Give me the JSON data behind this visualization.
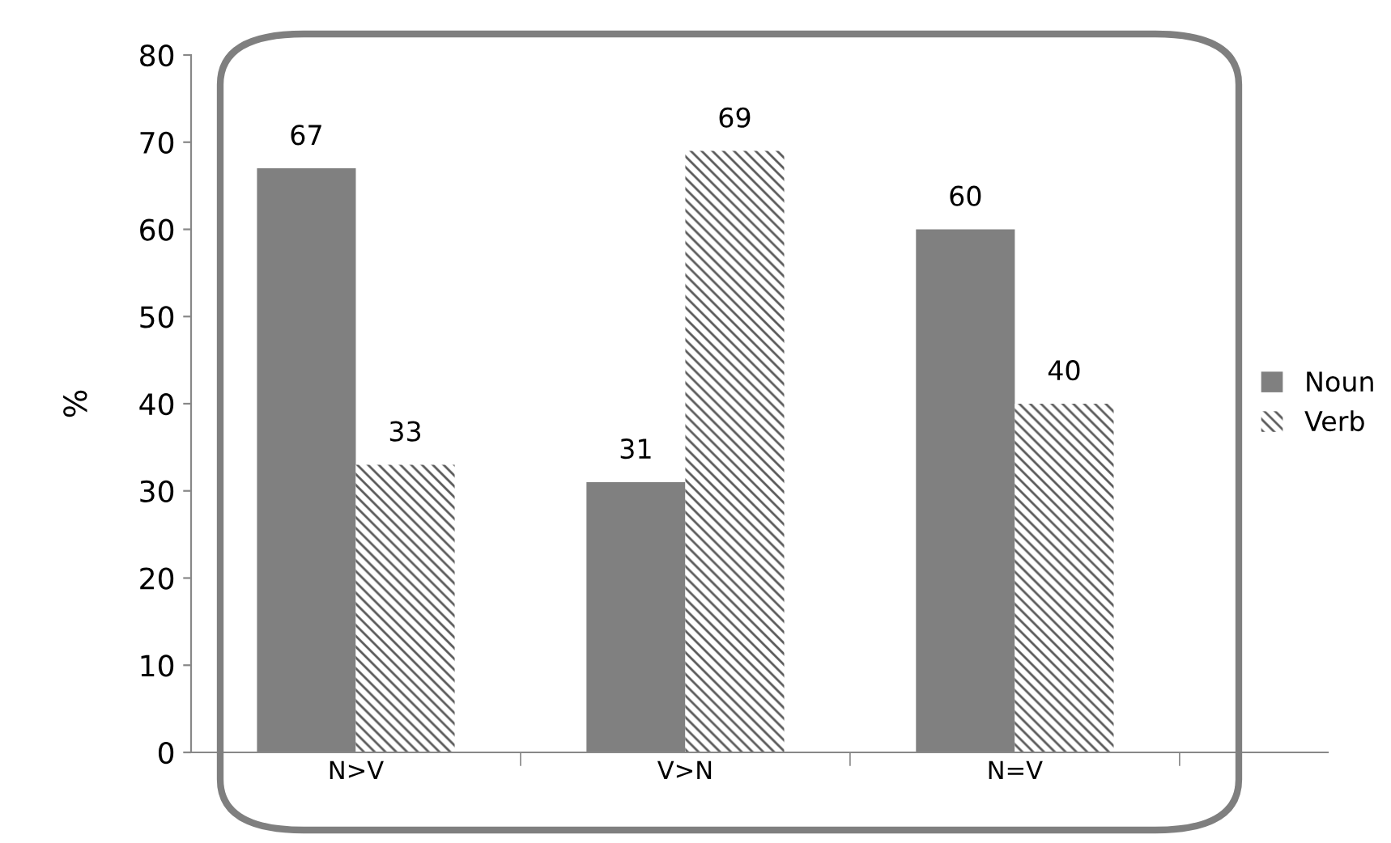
{
  "chart_data": {
    "type": "bar",
    "ylabel": "%",
    "categories": [
      "N>V",
      "V>N",
      "N=V"
    ],
    "series": [
      {
        "name": "Noun",
        "color": "#808080",
        "values": [
          67,
          31,
          60
        ]
      },
      {
        "name": "Verb",
        "color": "#595959",
        "values": [
          33,
          69,
          40
        ]
      }
    ],
    "ylim": [
      0,
      80
    ],
    "yticks": [
      0,
      10,
      20,
      30,
      40,
      50,
      60,
      70,
      80
    ],
    "grid": false,
    "legend": "right",
    "data_labels": true
  }
}
